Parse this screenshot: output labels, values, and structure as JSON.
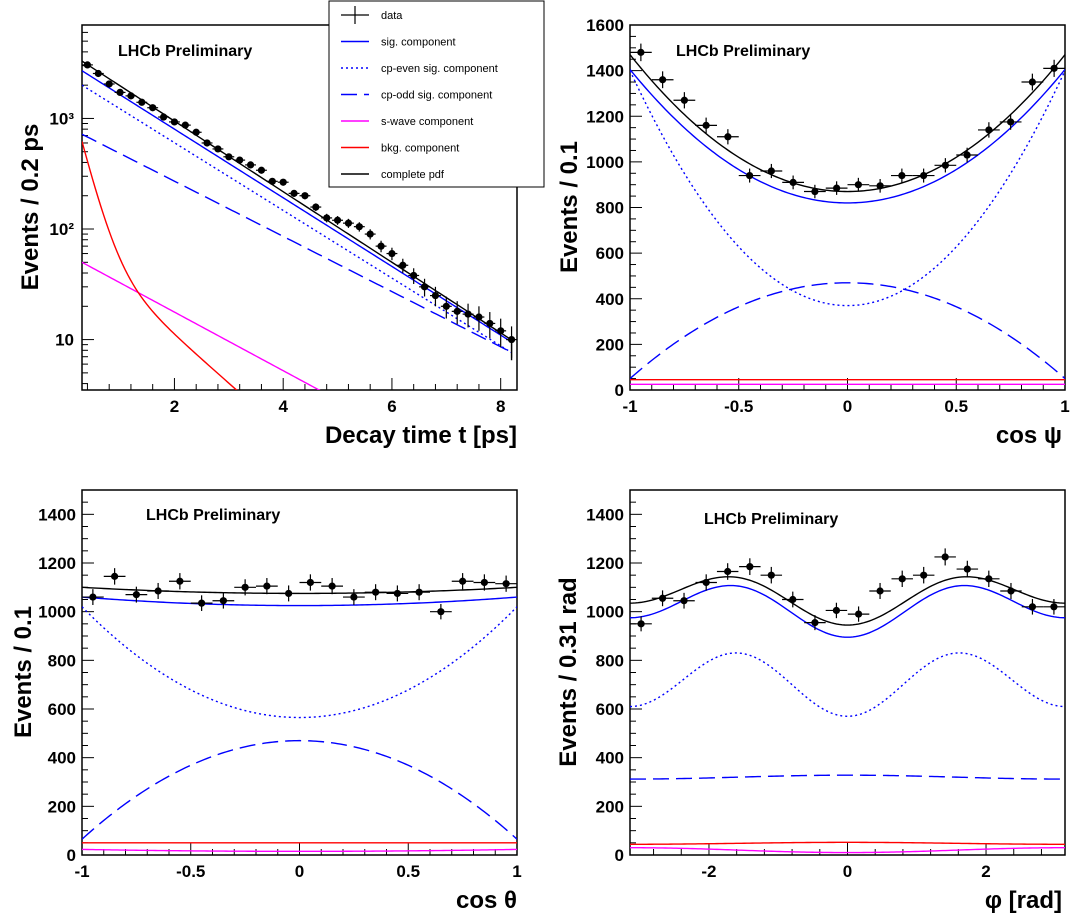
{
  "colors": {
    "data": "#000000",
    "signal": "#0000ff",
    "cp_even": "#0000ff",
    "cp_odd": "#0000ff",
    "s_wave": "#ff00ff",
    "background": "#ff0000",
    "total": "#000000"
  },
  "legend": {
    "placement": "top-center, overlapping first panel",
    "entries": [
      {
        "key": "data",
        "label": "data",
        "style": "points"
      },
      {
        "key": "signal",
        "label": "sig. component",
        "style": "solid"
      },
      {
        "key": "cp_even",
        "label": "cp-even sig. component",
        "style": "dotted"
      },
      {
        "key": "cp_odd",
        "label": "cp-odd sig. component",
        "style": "dashed"
      },
      {
        "key": "s_wave",
        "label": "s-wave component",
        "style": "solid"
      },
      {
        "key": "background",
        "label": "bkg. component",
        "style": "solid"
      },
      {
        "key": "total",
        "label": "complete pdf",
        "style": "solid"
      }
    ]
  },
  "chart_data": [
    {
      "type": "scatter",
      "title": "LHCb Preliminary",
      "xlabel": "Decay time t [ps]",
      "ylabel": "Events / 0.2 ps",
      "xlim": [
        0.3,
        8.3
      ],
      "ylim": [
        3.5,
        7000
      ],
      "log_y": true,
      "xticks": [
        2,
        4,
        6,
        8
      ],
      "yticks": [
        10,
        100,
        1000
      ],
      "ytick_labels": [
        "10",
        "10²",
        "10³"
      ],
      "data": {
        "x": [
          0.4,
          0.6,
          0.8,
          1.0,
          1.2,
          1.4,
          1.6,
          1.8,
          2.0,
          2.2,
          2.4,
          2.6,
          2.8,
          3.0,
          3.2,
          3.4,
          3.6,
          3.8,
          4.0,
          4.2,
          4.4,
          4.6,
          4.8,
          5.0,
          5.2,
          5.4,
          5.6,
          5.8,
          6.0,
          6.2,
          6.4,
          6.6,
          6.8,
          7.0,
          7.2,
          7.4,
          7.6,
          7.8,
          8.0,
          8.2
        ],
        "y": [
          3050,
          2550,
          2050,
          1720,
          1600,
          1400,
          1250,
          1030,
          930,
          870,
          750,
          600,
          530,
          450,
          420,
          380,
          340,
          270,
          265,
          210,
          200,
          158,
          126,
          120,
          113,
          105,
          90,
          70,
          60,
          47,
          38,
          30,
          25,
          20,
          18,
          17,
          16,
          14,
          12,
          10
        ]
      },
      "curves": [
        {
          "series": "total",
          "model": "exp",
          "params": [
            3300,
            0.3,
            0.735
          ],
          "x_range": [
            0.3,
            8.2
          ],
          "end_drop_to": 6.5
        },
        {
          "series": "signal",
          "model": "exp",
          "params": [
            2700,
            0.3,
            0.715
          ],
          "x_range": [
            0.3,
            8.2
          ]
        },
        {
          "series": "cp_even",
          "model": "exp",
          "params": [
            2000,
            0.3,
            0.705
          ],
          "x_range": [
            0.3,
            8.2
          ]
        },
        {
          "series": "cp_odd",
          "model": "exp",
          "params": [
            720,
            0.3,
            0.575
          ],
          "x_range": [
            0.3,
            8.2
          ]
        },
        {
          "series": "s_wave",
          "model": "exp",
          "params": [
            50,
            0.3,
            0.61
          ],
          "x_range": [
            0.3,
            8.2
          ]
        },
        {
          "series": "background",
          "model": "exp2",
          "params": [
            560,
            60,
            0.3,
            4.5,
            1.0
          ],
          "x_range": [
            0.3,
            8.2
          ]
        }
      ]
    },
    {
      "type": "scatter",
      "title": "LHCb Preliminary",
      "xlabel": "cos ψ",
      "ylabel": "Events / 0.1",
      "xlim": [
        -1,
        1
      ],
      "ylim": [
        0,
        1600
      ],
      "log_y": false,
      "xticks": [
        -1,
        -0.5,
        0,
        0.5,
        1
      ],
      "yticks": [
        0,
        200,
        400,
        600,
        800,
        1000,
        1200,
        1400,
        1600
      ],
      "data": {
        "x": [
          -0.95,
          -0.85,
          -0.75,
          -0.65,
          -0.55,
          -0.45,
          -0.35,
          -0.25,
          -0.15,
          -0.05,
          0.05,
          0.15,
          0.25,
          0.35,
          0.45,
          0.55,
          0.65,
          0.75,
          0.85,
          0.95
        ],
        "y": [
          1480,
          1360,
          1270,
          1160,
          1110,
          940,
          960,
          910,
          870,
          885,
          900,
          895,
          940,
          940,
          985,
          1030,
          1140,
          1175,
          1350,
          1410
        ]
      },
      "curves": [
        {
          "series": "total",
          "model": "quad",
          "params": [
            870,
            600
          ]
        },
        {
          "series": "signal",
          "model": "quad",
          "params": [
            820,
            585
          ]
        },
        {
          "series": "cp_even",
          "model": "quad",
          "params": [
            370,
            1030
          ]
        },
        {
          "series": "cp_odd",
          "model": "quad",
          "params": [
            470,
            -420
          ]
        },
        {
          "series": "s_wave",
          "model": "quad",
          "params": [
            25,
            0
          ]
        },
        {
          "series": "background",
          "model": "quad",
          "params": [
            45,
            0
          ]
        }
      ]
    },
    {
      "type": "scatter",
      "title": "LHCb Preliminary",
      "xlabel": "cos θ",
      "ylabel": "Events / 0.1",
      "xlim": [
        -1,
        1
      ],
      "ylim": [
        0,
        1500
      ],
      "log_y": false,
      "xticks": [
        -1,
        -0.5,
        0,
        0.5,
        1
      ],
      "yticks": [
        0,
        200,
        400,
        600,
        800,
        1000,
        1200,
        1400
      ],
      "data": {
        "x": [
          -0.95,
          -0.85,
          -0.75,
          -0.65,
          -0.55,
          -0.45,
          -0.35,
          -0.25,
          -0.15,
          -0.05,
          0.05,
          0.15,
          0.25,
          0.35,
          0.45,
          0.55,
          0.65,
          0.75,
          0.85,
          0.95
        ],
        "y": [
          1060,
          1145,
          1070,
          1085,
          1125,
          1035,
          1045,
          1100,
          1105,
          1075,
          1120,
          1105,
          1060,
          1080,
          1075,
          1080,
          1000,
          1125,
          1120,
          1115
        ]
      },
      "curves": [
        {
          "series": "total",
          "model": "quad",
          "params": [
            1075,
            25
          ]
        },
        {
          "series": "signal",
          "model": "quad",
          "params": [
            1025,
            35
          ]
        },
        {
          "series": "cp_even",
          "model": "quad",
          "params": [
            565,
            455
          ]
        },
        {
          "series": "cp_odd",
          "model": "quad",
          "params": [
            470,
            -405
          ]
        },
        {
          "series": "s_wave",
          "model": "quad",
          "params": [
            15,
            8
          ]
        },
        {
          "series": "background",
          "model": "quad",
          "params": [
            50,
            0
          ]
        }
      ]
    },
    {
      "type": "scatter",
      "title": "LHCb Preliminary",
      "xlabel": "φ [rad]",
      "ylabel": "Events / 0.31 rad",
      "xlim": [
        -3.14,
        3.14
      ],
      "ylim": [
        0,
        1500
      ],
      "log_y": false,
      "xticks": [
        -2,
        0,
        2
      ],
      "yticks": [
        0,
        200,
        400,
        600,
        800,
        1000,
        1200,
        1400
      ],
      "data": {
        "x": [
          -2.98,
          -2.67,
          -2.36,
          -2.04,
          -1.73,
          -1.41,
          -1.1,
          -0.79,
          -0.47,
          -0.16,
          0.16,
          0.47,
          0.79,
          1.1,
          1.41,
          1.73,
          2.04,
          2.36,
          2.67,
          2.98
        ],
        "y": [
          950,
          1055,
          1045,
          1120,
          1165,
          1185,
          1150,
          1050,
          955,
          1005,
          990,
          1085,
          1135,
          1150,
          1225,
          1175,
          1135,
          1085,
          1020,
          1020
        ]
      },
      "curves": [
        {
          "series": "total",
          "model": "harm",
          "params": [
            1065,
            -75,
            -45
          ]
        },
        {
          "series": "signal",
          "model": "harm",
          "params": [
            1020,
            -85,
            -40
          ]
        },
        {
          "series": "cp_even",
          "model": "harm",
          "params": [
            710,
            -120,
            -20
          ]
        },
        {
          "series": "cp_odd",
          "model": "harm",
          "params": [
            320,
            0,
            8
          ]
        },
        {
          "series": "s_wave",
          "model": "harm",
          "params": [
            20,
            0,
            -10
          ]
        },
        {
          "series": "background",
          "model": "harm",
          "params": [
            48,
            0,
            4
          ]
        }
      ]
    }
  ]
}
